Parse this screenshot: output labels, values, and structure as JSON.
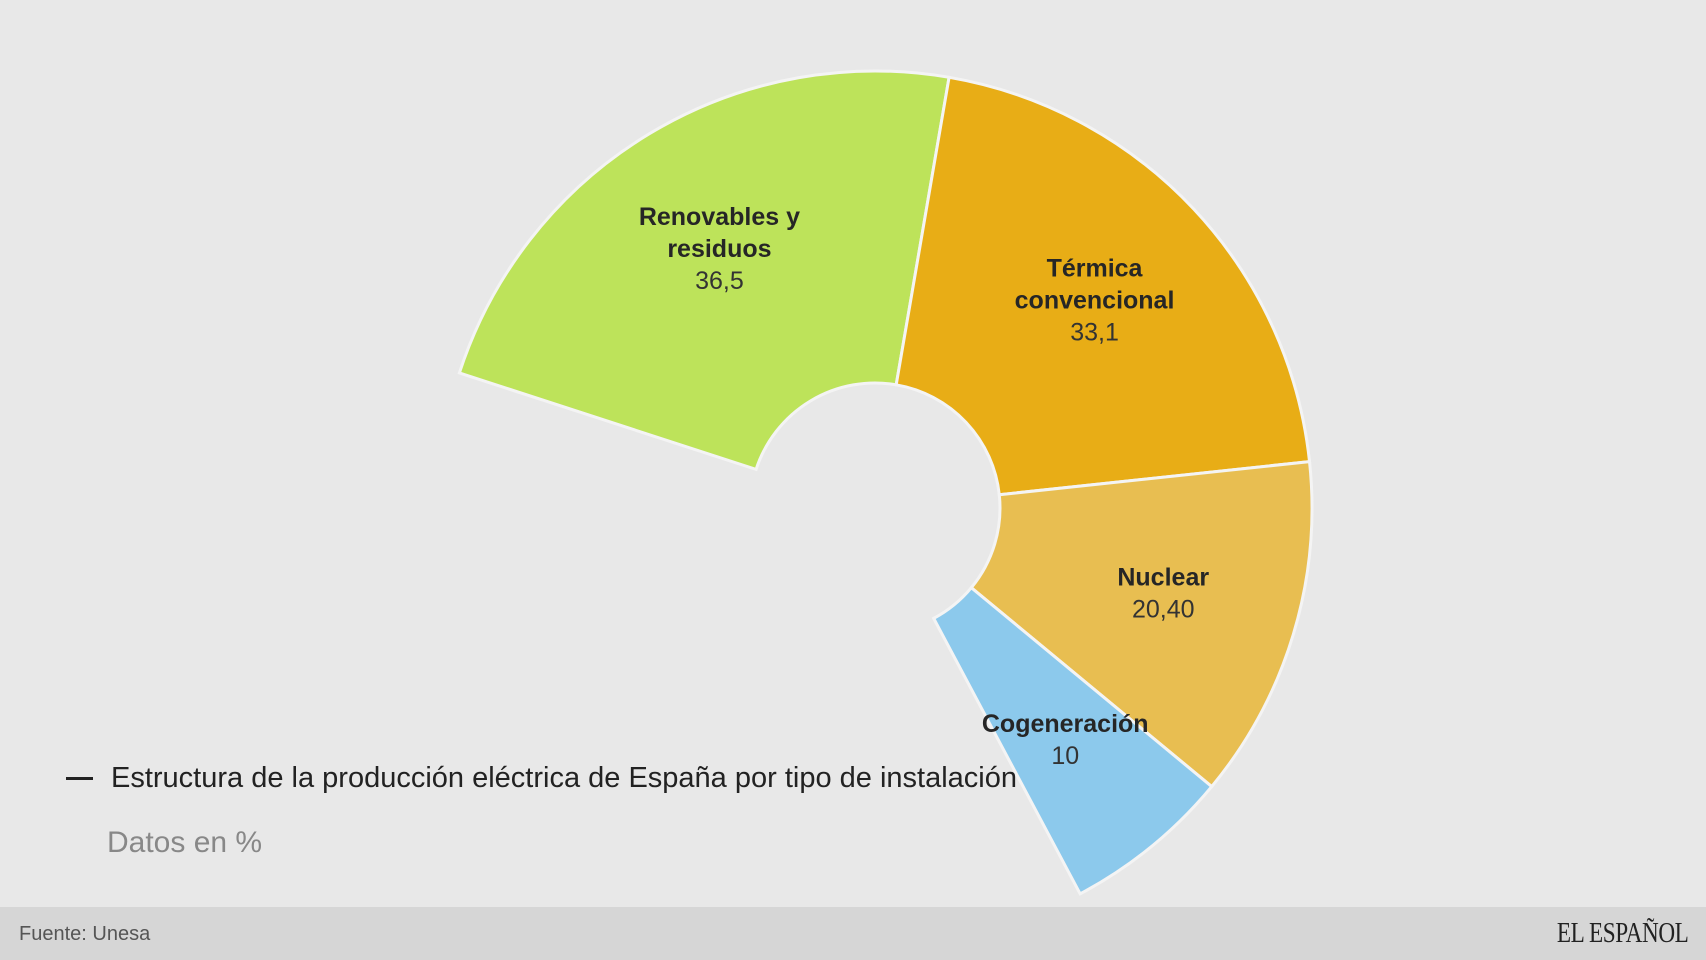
{
  "chart_data": {
    "type": "pie",
    "title": "Estructura de la producción eléctrica de España por tipo de instalación",
    "subtitle": "Datos en %",
    "slices": [
      {
        "label_lines": [
          "Renovables y",
          "residuos"
        ],
        "value_label": "36,5",
        "value": 36.5,
        "color": "#bde35a"
      },
      {
        "label_lines": [
          "Térmica",
          "convencional"
        ],
        "value_label": "33,1",
        "value": 33.1,
        "color": "#e8ad16"
      },
      {
        "label_lines": [
          "Nuclear"
        ],
        "value_label": "20,40",
        "value": 20.4,
        "color": "#e8be51"
      },
      {
        "label_lines": [
          "Cogeneración"
        ],
        "value_label": "10",
        "value": 10,
        "color": "#8cc9ec"
      }
    ]
  },
  "footer": {
    "source": "Fuente: Unesa",
    "brand": "EL ESPAÑOL"
  }
}
